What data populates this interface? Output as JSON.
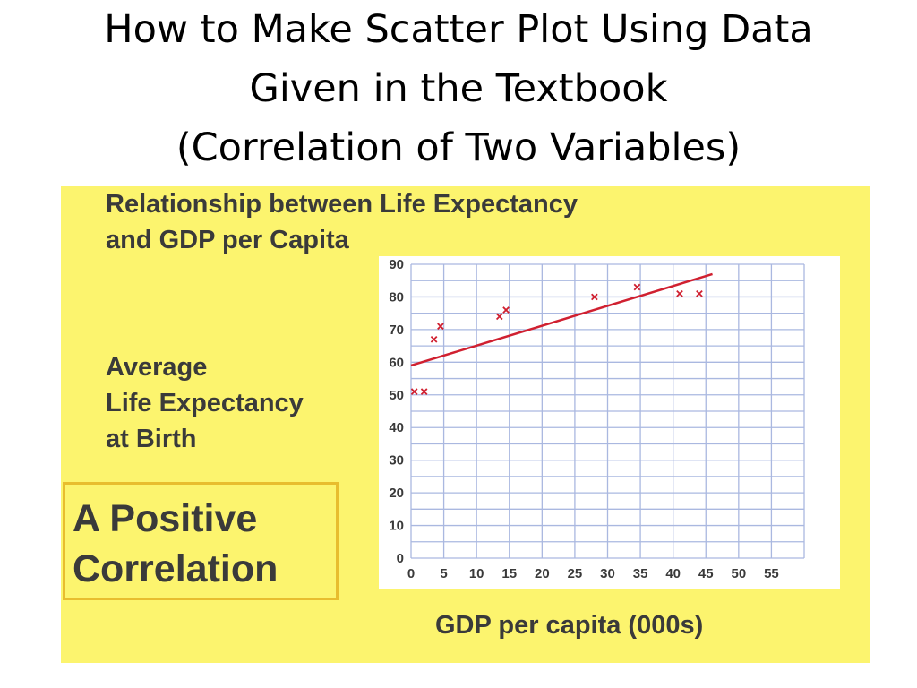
{
  "slide": {
    "title_lines": [
      "How to Make Scatter Plot Using Data",
      "Given in the Textbook",
      "(Correlation of Two Variables)"
    ]
  },
  "chart_data": {
    "type": "scatter",
    "title_lines": [
      "Relationship between Life Expectancy",
      "and GDP per Capita"
    ],
    "ylabel_lines": [
      "Average",
      "Life Expectancy",
      "at Birth"
    ],
    "xlabel": "GDP per capita (000s)",
    "annotation_lines": [
      "A Positive",
      "Correlation"
    ],
    "x_ticks": [
      0,
      5,
      10,
      15,
      20,
      25,
      30,
      35,
      40,
      45,
      50,
      55
    ],
    "y_ticks": [
      0,
      10,
      20,
      30,
      40,
      50,
      60,
      70,
      80,
      90
    ],
    "xlim": [
      0,
      60
    ],
    "ylim": [
      0,
      90
    ],
    "grid": true,
    "points": [
      {
        "x": 0.5,
        "y": 51
      },
      {
        "x": 2,
        "y": 51
      },
      {
        "x": 3.5,
        "y": 67
      },
      {
        "x": 4.5,
        "y": 71
      },
      {
        "x": 13.5,
        "y": 74
      },
      {
        "x": 14.5,
        "y": 76
      },
      {
        "x": 28,
        "y": 80
      },
      {
        "x": 34.5,
        "y": 83
      },
      {
        "x": 41,
        "y": 81
      },
      {
        "x": 44,
        "y": 81
      }
    ],
    "trend_line": {
      "x": [
        0,
        46
      ],
      "y": [
        59,
        87
      ]
    },
    "colors": {
      "background": "#fcf46e",
      "plot_area": "#ffffff",
      "grid": "#aab8e0",
      "points": "#d02030",
      "trend": "#d02030",
      "box_border": "#e8bd2e"
    }
  }
}
